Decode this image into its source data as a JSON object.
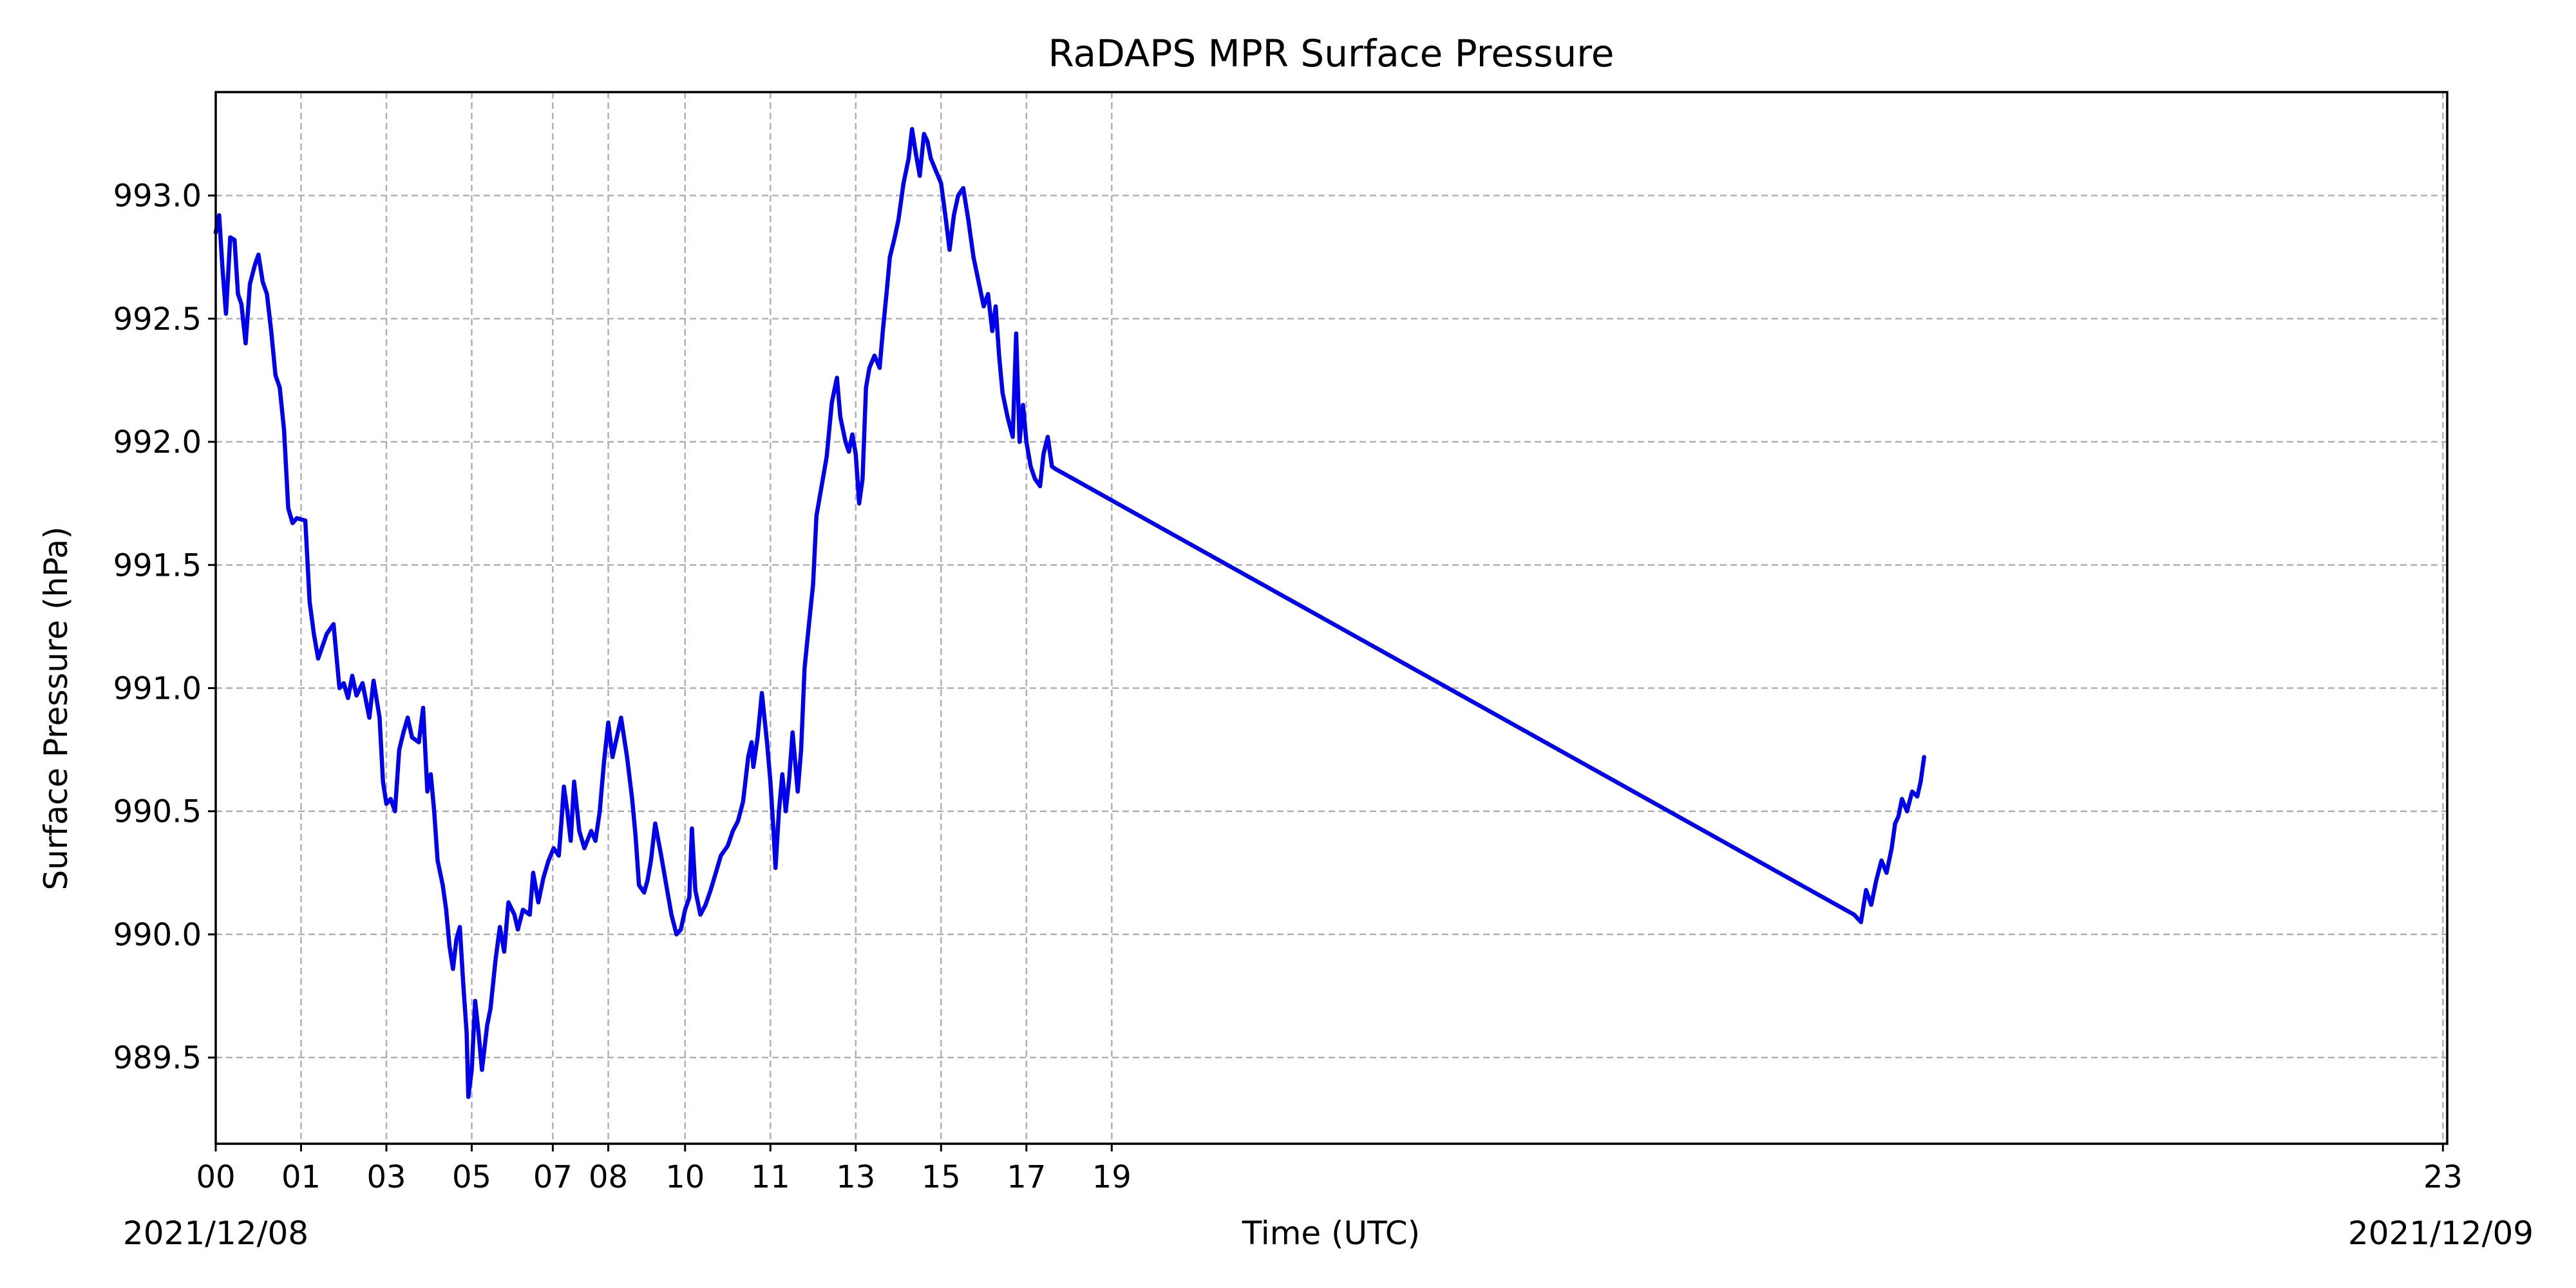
{
  "chart_data": {
    "type": "line",
    "title": "RaDAPS MPR Surface Pressure",
    "xlabel": "Time (UTC)",
    "ylabel": "Surface Pressure (hPa)",
    "x_unit": "hour UTC",
    "start_date_label": "2021/12/08",
    "end_date_label": "2021/12/09",
    "xlim": [
      0,
      26.15
    ],
    "ylim": [
      989.15,
      993.42
    ],
    "x_ticks": [
      {
        "value": 0,
        "label": "00"
      },
      {
        "value": 1,
        "label": "01"
      },
      {
        "value": 2,
        "label": "03"
      },
      {
        "value": 3,
        "label": "05"
      },
      {
        "value": 3.95,
        "label": "07"
      },
      {
        "value": 4.6,
        "label": "08"
      },
      {
        "value": 5.5,
        "label": "10"
      },
      {
        "value": 6.5,
        "label": "11"
      },
      {
        "value": 7.5,
        "label": "13"
      },
      {
        "value": 8.5,
        "label": "15"
      },
      {
        "value": 9.5,
        "label": "17"
      },
      {
        "value": 10.5,
        "label": "19"
      },
      {
        "value": 26.1,
        "label": "23"
      }
    ],
    "y_ticks": [
      989.5,
      990.0,
      990.5,
      991.0,
      991.5,
      992.0,
      992.5,
      993.0
    ],
    "y_tick_labels": [
      "989.5",
      "990.0",
      "990.5",
      "991.0",
      "991.5",
      "992.0",
      "992.5",
      "993.0"
    ],
    "grid": true,
    "series_color": "#0000ee",
    "series": [
      {
        "points": [
          [
            0.0,
            992.85
          ],
          [
            0.04,
            992.92
          ],
          [
            0.08,
            992.7
          ],
          [
            0.12,
            992.52
          ],
          [
            0.17,
            992.83
          ],
          [
            0.22,
            992.82
          ],
          [
            0.26,
            992.6
          ],
          [
            0.3,
            992.56
          ],
          [
            0.35,
            992.4
          ],
          [
            0.4,
            992.64
          ],
          [
            0.46,
            992.72
          ],
          [
            0.5,
            992.76
          ],
          [
            0.55,
            992.65
          ],
          [
            0.6,
            992.6
          ],
          [
            0.65,
            992.45
          ],
          [
            0.7,
            992.27
          ],
          [
            0.75,
            992.22
          ],
          [
            0.8,
            992.05
          ],
          [
            0.85,
            991.73
          ],
          [
            0.9,
            991.67
          ],
          [
            0.95,
            991.69
          ],
          [
            1.05,
            991.68
          ],
          [
            1.1,
            991.35
          ],
          [
            1.15,
            991.22
          ],
          [
            1.2,
            991.12
          ],
          [
            1.3,
            991.22
          ],
          [
            1.38,
            991.26
          ],
          [
            1.45,
            991.0
          ],
          [
            1.5,
            991.02
          ],
          [
            1.55,
            990.96
          ],
          [
            1.6,
            991.05
          ],
          [
            1.65,
            990.97
          ],
          [
            1.72,
            991.02
          ],
          [
            1.8,
            990.88
          ],
          [
            1.85,
            991.03
          ],
          [
            1.92,
            990.88
          ],
          [
            1.96,
            990.62
          ],
          [
            2.0,
            990.53
          ],
          [
            2.05,
            990.55
          ],
          [
            2.1,
            990.5
          ],
          [
            2.15,
            990.75
          ],
          [
            2.2,
            990.82
          ],
          [
            2.25,
            990.88
          ],
          [
            2.3,
            990.8
          ],
          [
            2.38,
            990.78
          ],
          [
            2.43,
            990.92
          ],
          [
            2.48,
            990.58
          ],
          [
            2.52,
            990.65
          ],
          [
            2.56,
            990.5
          ],
          [
            2.6,
            990.3
          ],
          [
            2.66,
            990.2
          ],
          [
            2.7,
            990.1
          ],
          [
            2.74,
            989.95
          ],
          [
            2.78,
            989.86
          ],
          [
            2.82,
            989.98
          ],
          [
            2.86,
            990.03
          ],
          [
            2.9,
            989.8
          ],
          [
            2.94,
            989.6
          ],
          [
            2.96,
            989.34
          ],
          [
            3.0,
            989.45
          ],
          [
            3.04,
            989.73
          ],
          [
            3.08,
            989.6
          ],
          [
            3.12,
            989.45
          ],
          [
            3.18,
            989.63
          ],
          [
            3.22,
            989.7
          ],
          [
            3.28,
            989.9
          ],
          [
            3.33,
            990.03
          ],
          [
            3.38,
            989.93
          ],
          [
            3.43,
            990.13
          ],
          [
            3.5,
            990.08
          ],
          [
            3.54,
            990.02
          ],
          [
            3.6,
            990.1
          ],
          [
            3.68,
            990.08
          ],
          [
            3.72,
            990.25
          ],
          [
            3.78,
            990.13
          ],
          [
            3.84,
            990.23
          ],
          [
            3.9,
            990.3
          ],
          [
            3.96,
            990.35
          ],
          [
            4.02,
            990.32
          ],
          [
            4.05,
            990.45
          ],
          [
            4.08,
            990.6
          ],
          [
            4.12,
            990.5
          ],
          [
            4.16,
            990.38
          ],
          [
            4.2,
            990.62
          ],
          [
            4.26,
            990.42
          ],
          [
            4.32,
            990.35
          ],
          [
            4.4,
            990.42
          ],
          [
            4.45,
            990.38
          ],
          [
            4.5,
            990.5
          ],
          [
            4.55,
            990.7
          ],
          [
            4.6,
            990.86
          ],
          [
            4.65,
            990.72
          ],
          [
            4.7,
            990.8
          ],
          [
            4.75,
            990.88
          ],
          [
            4.82,
            990.72
          ],
          [
            4.88,
            990.55
          ],
          [
            4.92,
            990.4
          ],
          [
            4.96,
            990.2
          ],
          [
            5.02,
            990.17
          ],
          [
            5.06,
            990.22
          ],
          [
            5.1,
            990.3
          ],
          [
            5.15,
            990.45
          ],
          [
            5.22,
            990.32
          ],
          [
            5.28,
            990.2
          ],
          [
            5.34,
            990.08
          ],
          [
            5.4,
            990.0
          ],
          [
            5.45,
            990.02
          ],
          [
            5.5,
            990.1
          ],
          [
            5.55,
            990.15
          ],
          [
            5.58,
            990.43
          ],
          [
            5.62,
            990.18
          ],
          [
            5.68,
            990.08
          ],
          [
            5.74,
            990.12
          ],
          [
            5.8,
            990.18
          ],
          [
            5.86,
            990.25
          ],
          [
            5.92,
            990.32
          ],
          [
            6.0,
            990.36
          ],
          [
            6.06,
            990.42
          ],
          [
            6.12,
            990.46
          ],
          [
            6.18,
            990.54
          ],
          [
            6.24,
            990.72
          ],
          [
            6.28,
            990.78
          ],
          [
            6.3,
            990.68
          ],
          [
            6.35,
            990.8
          ],
          [
            6.4,
            990.98
          ],
          [
            6.46,
            990.78
          ],
          [
            6.5,
            990.62
          ],
          [
            6.54,
            990.4
          ],
          [
            6.56,
            990.27
          ],
          [
            6.6,
            990.5
          ],
          [
            6.64,
            990.65
          ],
          [
            6.68,
            990.5
          ],
          [
            6.72,
            990.63
          ],
          [
            6.76,
            990.82
          ],
          [
            6.82,
            990.58
          ],
          [
            6.86,
            990.75
          ],
          [
            6.9,
            991.08
          ],
          [
            6.94,
            991.22
          ],
          [
            7.0,
            991.42
          ],
          [
            7.04,
            991.7
          ],
          [
            7.1,
            991.82
          ],
          [
            7.16,
            991.94
          ],
          [
            7.22,
            992.16
          ],
          [
            7.28,
            992.26
          ],
          [
            7.32,
            992.1
          ],
          [
            7.38,
            992.0
          ],
          [
            7.42,
            991.96
          ],
          [
            7.46,
            992.03
          ],
          [
            7.5,
            991.95
          ],
          [
            7.54,
            991.75
          ],
          [
            7.58,
            991.85
          ],
          [
            7.62,
            992.22
          ],
          [
            7.66,
            992.3
          ],
          [
            7.72,
            992.35
          ],
          [
            7.78,
            992.3
          ],
          [
            7.82,
            992.46
          ],
          [
            7.86,
            992.6
          ],
          [
            7.9,
            992.75
          ],
          [
            7.95,
            992.82
          ],
          [
            8.0,
            992.9
          ],
          [
            8.06,
            993.05
          ],
          [
            8.12,
            993.15
          ],
          [
            8.16,
            993.27
          ],
          [
            8.2,
            993.18
          ],
          [
            8.25,
            993.08
          ],
          [
            8.3,
            993.25
          ],
          [
            8.34,
            993.22
          ],
          [
            8.38,
            993.15
          ],
          [
            8.44,
            993.1
          ],
          [
            8.5,
            993.05
          ],
          [
            8.55,
            992.92
          ],
          [
            8.6,
            992.78
          ],
          [
            8.65,
            992.92
          ],
          [
            8.7,
            993.0
          ],
          [
            8.76,
            993.03
          ],
          [
            8.82,
            992.9
          ],
          [
            8.88,
            992.75
          ],
          [
            8.94,
            992.65
          ],
          [
            9.0,
            992.55
          ],
          [
            9.05,
            992.6
          ],
          [
            9.1,
            992.45
          ],
          [
            9.14,
            992.55
          ],
          [
            9.18,
            992.35
          ],
          [
            9.22,
            992.2
          ],
          [
            9.28,
            992.1
          ],
          [
            9.34,
            992.02
          ],
          [
            9.38,
            992.44
          ],
          [
            9.42,
            992.0
          ],
          [
            9.46,
            992.15
          ],
          [
            9.5,
            992.0
          ],
          [
            9.55,
            991.9
          ],
          [
            9.6,
            991.85
          ],
          [
            9.66,
            991.82
          ],
          [
            9.7,
            991.95
          ],
          [
            9.75,
            992.02
          ],
          [
            9.8,
            991.9
          ],
          [
            9.84,
            991.89
          ],
          [
            19.2,
            990.08
          ],
          [
            19.28,
            990.05
          ],
          [
            19.34,
            990.18
          ],
          [
            19.4,
            990.12
          ],
          [
            19.46,
            990.22
          ],
          [
            19.52,
            990.3
          ],
          [
            19.58,
            990.25
          ],
          [
            19.64,
            990.35
          ],
          [
            19.68,
            990.45
          ],
          [
            19.72,
            990.48
          ],
          [
            19.76,
            990.55
          ],
          [
            19.82,
            990.5
          ],
          [
            19.88,
            990.58
          ],
          [
            19.94,
            990.56
          ],
          [
            19.98,
            990.62
          ],
          [
            20.02,
            990.72
          ]
        ]
      }
    ]
  }
}
